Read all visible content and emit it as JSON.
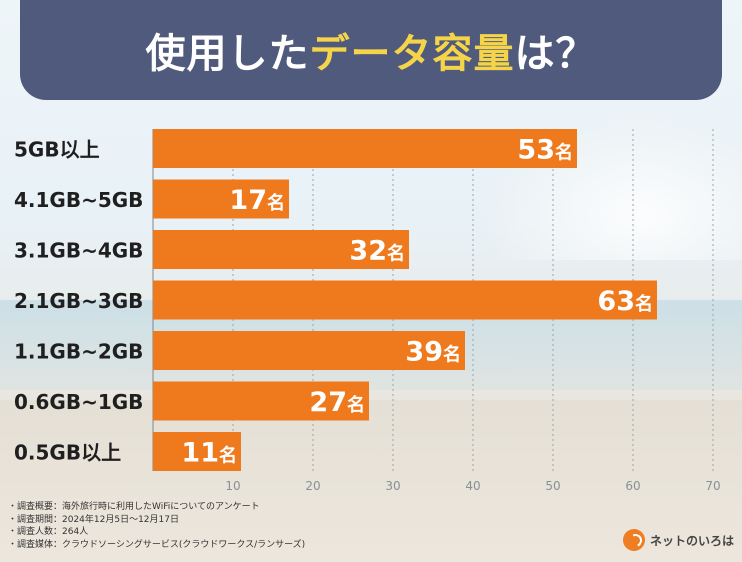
{
  "header": {
    "title_pre": "使用した",
    "title_highlight": "データ容量",
    "title_post": "は？"
  },
  "chart_data": {
    "type": "bar",
    "orientation": "horizontal",
    "categories": [
      "5GB以上",
      "4.1GB~5GB",
      "3.1GB~4GB",
      "2.1GB~3GB",
      "1.1GB~2GB",
      "0.6GB~1GB",
      "0.5GB以上"
    ],
    "values": [
      53,
      17,
      32,
      63,
      39,
      27,
      11
    ],
    "value_suffix": "名",
    "xticks": [
      10,
      20,
      30,
      40,
      50,
      60,
      70
    ],
    "xlim": [
      0,
      70
    ],
    "grid": true,
    "bar_color": "#ef7a1d",
    "xlabel": "",
    "ylabel": ""
  },
  "notes": [
    "・調査概要：海外旅行時に利用したWiFiについてのアンケート",
    "・調査期間：2024年12月5日～12月17日",
    "・調査人数：264人",
    "・調査媒体：クラウドソーシングサービス(クラウドワークス/ランサーズ)"
  ],
  "logo": {
    "text": "ネットのいろは",
    "icon": "net-no-iroha-logo-icon"
  }
}
